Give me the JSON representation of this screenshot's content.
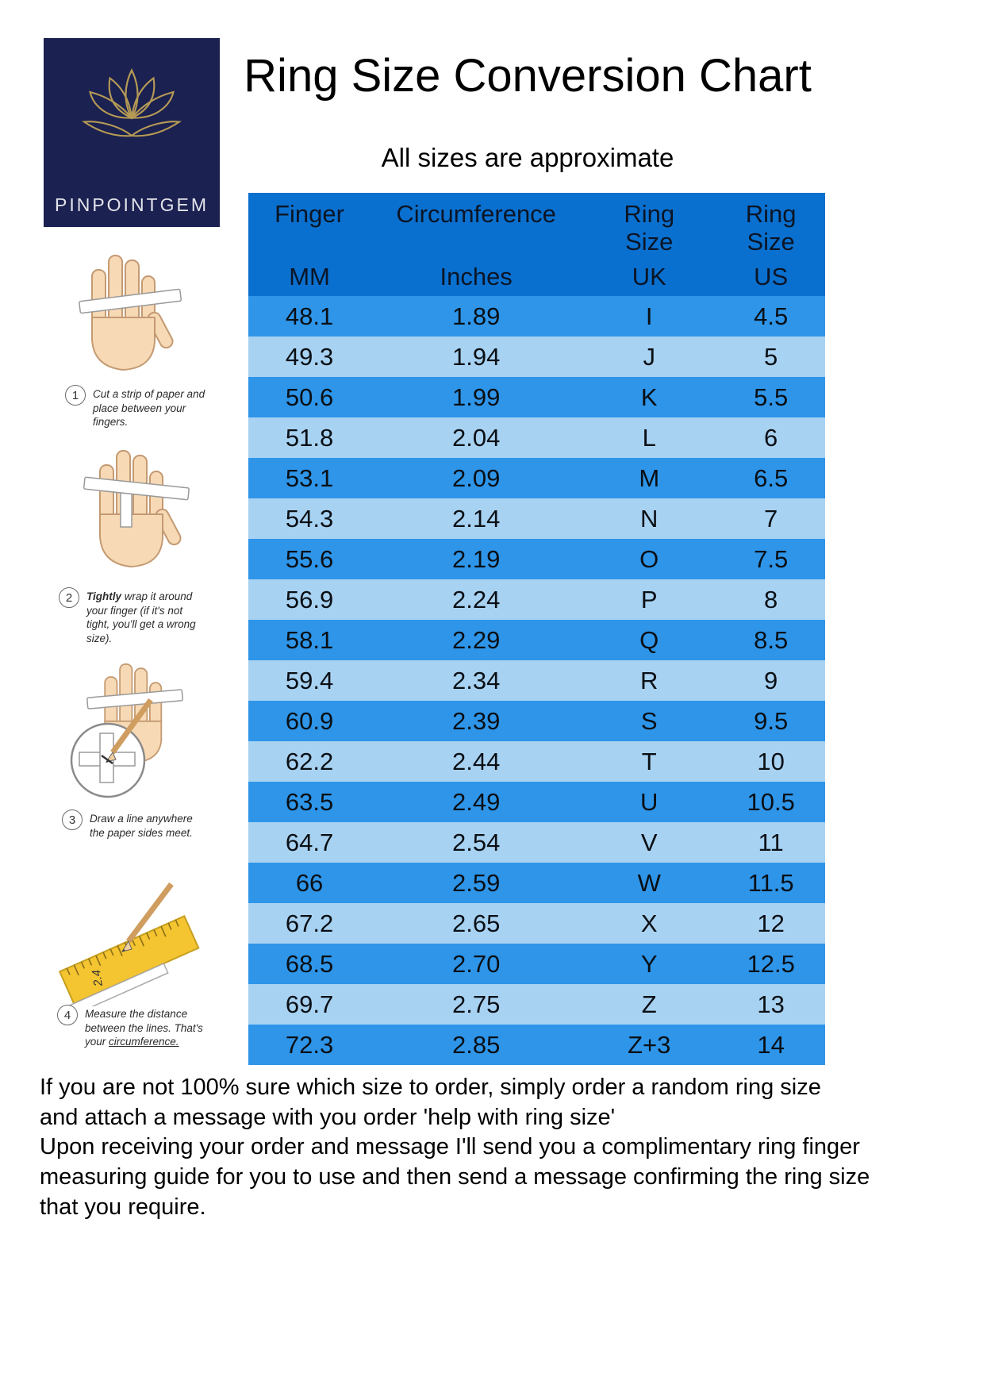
{
  "page": {
    "title": "Ring Size Conversion Chart",
    "subtitle": "All sizes are approximate"
  },
  "logo": {
    "brand": "PINPOINTGEM",
    "bg_color": "#1b2150",
    "accent_color": "#b59a55"
  },
  "colors": {
    "table_header_bg": "#0a70cf",
    "row_medium": "#2e95e9",
    "row_light": "#a8d2f2"
  },
  "chart_data": {
    "type": "table",
    "title": "Ring Size Conversion Chart",
    "subtitle": "All sizes are approximate",
    "columns": [
      {
        "top": "Finger",
        "bottom": "MM"
      },
      {
        "top": "Circumference",
        "bottom": "Inches"
      },
      {
        "top": "Ring Size",
        "bottom": "UK"
      },
      {
        "top": "Ring Size",
        "bottom": "US"
      }
    ],
    "rows": [
      [
        "48.1",
        "1.89",
        "I",
        "4.5"
      ],
      [
        "49.3",
        "1.94",
        "J",
        "5"
      ],
      [
        "50.6",
        "1.99",
        "K",
        "5.5"
      ],
      [
        "51.8",
        "2.04",
        "L",
        "6"
      ],
      [
        "53.1",
        "2.09",
        "M",
        "6.5"
      ],
      [
        "54.3",
        "2.14",
        "N",
        "7"
      ],
      [
        "55.6",
        "2.19",
        "O",
        "7.5"
      ],
      [
        "56.9",
        "2.24",
        "P",
        "8"
      ],
      [
        "58.1",
        "2.29",
        "Q",
        "8.5"
      ],
      [
        "59.4",
        "2.34",
        "R",
        "9"
      ],
      [
        "60.9",
        "2.39",
        "S",
        "9.5"
      ],
      [
        "62.2",
        "2.44",
        "T",
        "10"
      ],
      [
        "63.5",
        "2.49",
        "U",
        "10.5"
      ],
      [
        "64.7",
        "2.54",
        "V",
        "11"
      ],
      [
        "66",
        "2.59",
        "W",
        "11.5"
      ],
      [
        "67.2",
        "2.65",
        "X",
        "12"
      ],
      [
        "68.5",
        "2.70",
        "Y",
        "12.5"
      ],
      [
        "69.7",
        "2.75",
        "Z",
        "13"
      ],
      [
        "72.3",
        "2.85",
        "Z+3",
        "14"
      ]
    ]
  },
  "steps": [
    {
      "number": "1",
      "lead": "",
      "text": "Cut a strip of paper and place between your fingers.",
      "underlined": ""
    },
    {
      "number": "2",
      "lead": "Tightly",
      "text": " wrap it around your finger (if it's not tight, you'll get a wrong size).",
      "underlined": ""
    },
    {
      "number": "3",
      "lead": "",
      "text": "Draw a line anywhere the paper sides meet.",
      "underlined": ""
    },
    {
      "number": "4",
      "lead": "",
      "text": "Measure the distance between the lines. That's your ",
      "underlined": "circumference."
    }
  ],
  "footer": {
    "lines": [
      "If you are not 100% sure which size to order, simply order a random ring size",
      "and attach a message with you order 'help with ring size'",
      "Upon receiving your order and message I'll send you a complimentary ring finger",
      "measuring guide for you to use and then send a message confirming the ring size",
      "that you require."
    ]
  }
}
